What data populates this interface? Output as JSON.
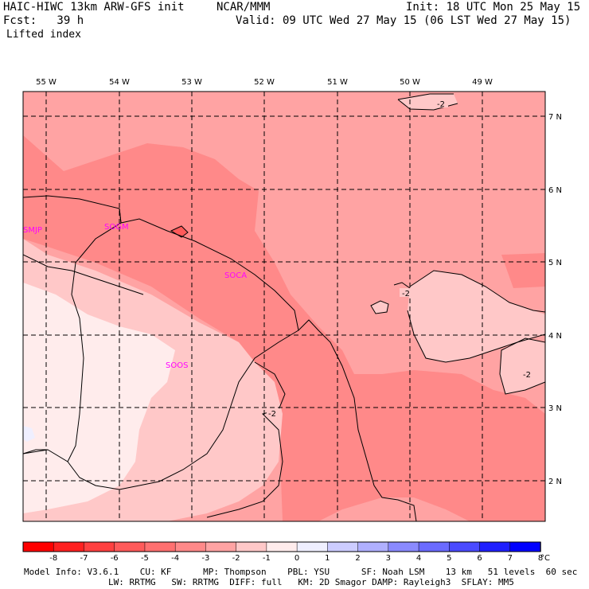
{
  "header": {
    "model": "HAIC-HIWC 13km ARW-GFS init",
    "org": "NCAR/MMM",
    "init": "Init: 18 UTC Mon 25 May 15",
    "fcst": "Fcst:   39 h",
    "valid": "Valid: 09 UTC Wed 27 May 15 (06 LST Wed 27 May 15)",
    "field": "Lifted index"
  },
  "map": {
    "lon_labels": [
      "55 W",
      "54 W",
      "53 W",
      "52 W",
      "51 W",
      "50 W",
      "49 W"
    ],
    "lat_labels": [
      "7 N",
      "6 N",
      "5 N",
      "4 N",
      "3 N",
      "2 N"
    ],
    "stations": [
      "SMJP",
      "SOGM",
      "SOCA",
      "SOOS"
    ],
    "contour_labels": [
      "-2",
      "-2",
      "-2",
      "-2"
    ]
  },
  "colorbar": {
    "labels": [
      "-8",
      "-7",
      "-6",
      "-5",
      "-4",
      "-3",
      "-2",
      "-1",
      "0",
      "1",
      "2",
      "3",
      "4",
      "5",
      "6",
      "7",
      "8"
    ],
    "unit": "°C",
    "colors": [
      "#ff0000",
      "#ff2020",
      "#ff4040",
      "#ff5a5a",
      "#ff7070",
      "#ff8989",
      "#ffa3a3",
      "#ffc8c8",
      "#ffecec",
      "#efefff",
      "#ccccff",
      "#b0b0ff",
      "#8a8aff",
      "#6b6bff",
      "#4b4bff",
      "#2020ff",
      "#0000ff"
    ]
  },
  "footer": {
    "line1": "Model Info: V3.6.1    CU: KF      MP: Thompson    PBL: YSU      SF: Noah LSM    13 km   51 levels  60 sec",
    "line2": "                LW: RRTMG   SW: RRTMG  DIFF: full   KM: 2D Smagor DAMP: Rayleigh3  SFLAY: MM5"
  }
}
